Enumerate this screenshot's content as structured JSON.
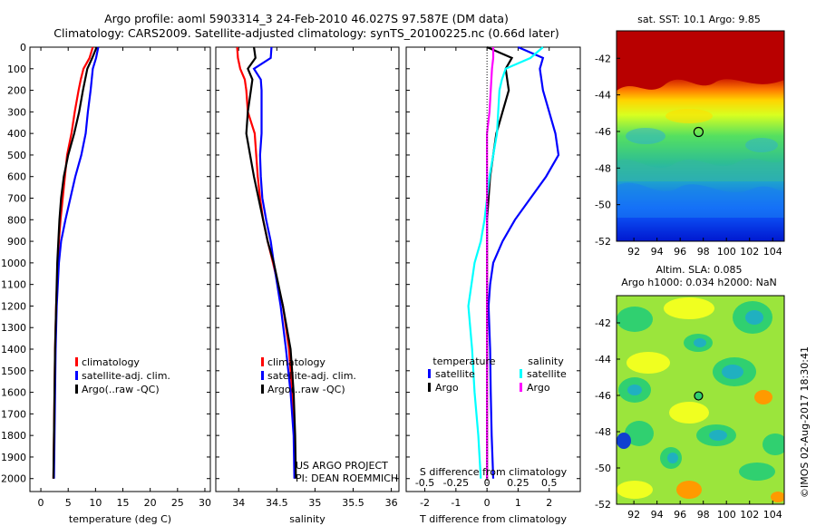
{
  "header": {
    "line1": "Argo profile: aoml 5903314_3 24-Feb-2010 46.027S 97.587E (DM data)",
    "line2": "Climatology: CARS2009. Satellite-adjusted climatology: synTS_20100225.nc (0.66d later)"
  },
  "colors": {
    "climatology": "#ff0000",
    "satellite": "#0000ff",
    "argo": "#000000",
    "satellite_s": "#00ffff",
    "argo_s": "#ff00ff"
  },
  "chart_data": [
    {
      "type": "line",
      "xlabel": "temperature (deg C)",
      "ylabel": "",
      "xlim": [
        -2,
        31
      ],
      "ylim": [
        2060,
        0
      ],
      "x_ticks": [
        "0",
        "5",
        "10",
        "15",
        "20",
        "25",
        "30"
      ],
      "y_ticks": [
        "0",
        "100",
        "200",
        "300",
        "400",
        "500",
        "600",
        "700",
        "800",
        "900",
        "1000",
        "1100",
        "1200",
        "1300",
        "1400",
        "1500",
        "1600",
        "1700",
        "1800",
        "1900",
        "2000"
      ],
      "legend": [
        "climatology",
        "satellite-adj. clim.",
        "Argo(..raw -QC)"
      ],
      "series": [
        {
          "name": "climatology",
          "color": "#ff0000",
          "depth": [
            0,
            50,
            100,
            150,
            200,
            300,
            400,
            500,
            600,
            700,
            800,
            900,
            1000,
            1200,
            1400,
            1600,
            1800,
            2000
          ],
          "values": [
            9.5,
            8.9,
            7.8,
            7.3,
            6.9,
            6.2,
            5.6,
            4.8,
            4.4,
            4.0,
            3.6,
            3.3,
            3.1,
            2.8,
            2.6,
            2.5,
            2.4,
            2.3
          ]
        },
        {
          "name": "satellite-adj. clim.",
          "color": "#0000ff",
          "depth": [
            0,
            50,
            100,
            150,
            200,
            300,
            400,
            500,
            600,
            700,
            800,
            900,
            1000,
            1200,
            1400,
            1600,
            1800,
            2000
          ],
          "values": [
            10.5,
            10.1,
            9.5,
            9.3,
            9.1,
            8.6,
            8.2,
            7.4,
            6.3,
            5.4,
            4.5,
            3.7,
            3.3,
            2.9,
            2.7,
            2.6,
            2.5,
            2.4
          ]
        },
        {
          "name": "Argo(..raw -QC)",
          "color": "#000000",
          "depth": [
            0,
            50,
            100,
            150,
            200,
            300,
            400,
            500,
            600,
            700,
            800,
            900,
            1000,
            1200,
            1400,
            1600,
            1800,
            2000
          ],
          "values": [
            10.2,
            9.4,
            8.5,
            8.1,
            7.7,
            7.0,
            6.1,
            5.0,
            4.2,
            3.7,
            3.4,
            3.2,
            3.0,
            2.8,
            2.6,
            2.5,
            2.4,
            2.3
          ]
        }
      ]
    },
    {
      "type": "line",
      "xlabel": "salinity",
      "xlim": [
        33.7,
        36.1
      ],
      "ylim": [
        2060,
        0
      ],
      "x_ticks": [
        "34",
        "34.5",
        "35",
        "35.5",
        "36"
      ],
      "legend": [
        "climatology",
        "satellite-adj. clim.",
        "Argo(..raw -QC)"
      ],
      "footnote": [
        "US ARGO PROJECT",
        "PI: DEAN ROEMMICH"
      ],
      "series": [
        {
          "name": "climatology",
          "color": "#ff0000",
          "depth": [
            0,
            50,
            100,
            150,
            200,
            300,
            400,
            500,
            600,
            700,
            800,
            900,
            1000,
            1200,
            1400,
            1600,
            1800,
            2000
          ],
          "values": [
            33.98,
            33.99,
            34.02,
            34.08,
            34.1,
            34.12,
            34.21,
            34.23,
            34.25,
            34.28,
            34.32,
            34.38,
            34.45,
            34.58,
            34.66,
            34.7,
            34.73,
            34.74
          ]
        },
        {
          "name": "satellite-adj. clim.",
          "color": "#0000ff",
          "depth": [
            0,
            50,
            100,
            150,
            200,
            300,
            400,
            500,
            600,
            700,
            800,
            900,
            1000,
            1200,
            1400,
            1600,
            1800,
            2000
          ],
          "values": [
            34.43,
            34.42,
            34.2,
            34.29,
            34.3,
            34.3,
            34.3,
            34.28,
            34.29,
            34.31,
            34.36,
            34.42,
            34.46,
            34.55,
            34.62,
            34.68,
            34.72,
            34.73
          ]
        },
        {
          "name": "Argo(..raw -QC)",
          "color": "#000000",
          "depth": [
            0,
            50,
            100,
            150,
            200,
            300,
            400,
            500,
            600,
            700,
            800,
            900,
            1000,
            1200,
            1400,
            1600,
            1800,
            2000
          ],
          "values": [
            34.2,
            34.22,
            34.12,
            34.18,
            34.16,
            34.12,
            34.1,
            34.15,
            34.2,
            34.26,
            34.32,
            34.38,
            34.46,
            34.58,
            34.68,
            34.72,
            34.74,
            34.75
          ]
        }
      ]
    },
    {
      "type": "line",
      "xlabel": "T difference from climatology",
      "xlabel_top": "S difference from climatology",
      "xlim": [
        -2.6,
        3.0
      ],
      "ylim": [
        2060,
        0
      ],
      "x_ticks": [
        "-2",
        "-1",
        "0",
        "1",
        "2"
      ],
      "x_ticks_top": [
        "-0.5",
        "-0.25",
        "0",
        "0.25",
        "0.5"
      ],
      "legend_headings": [
        "temperature",
        "salinity"
      ],
      "legend": [
        "satellite",
        "Argo",
        "satellite",
        "Argo"
      ],
      "series": [
        {
          "name": "satellite",
          "group": "temperature",
          "color": "#0000ff",
          "depth": [
            0,
            50,
            100,
            200,
            300,
            400,
            500,
            600,
            700,
            800,
            900,
            1000,
            1100,
            1200,
            1400,
            1600,
            1800,
            2000
          ],
          "values": [
            1.0,
            1.8,
            1.7,
            1.8,
            2.0,
            2.2,
            2.3,
            1.9,
            1.4,
            0.9,
            0.5,
            0.2,
            0.1,
            0.05,
            0.1,
            0.12,
            0.15,
            0.2
          ]
        },
        {
          "name": "Argo",
          "group": "temperature",
          "color": "#000000",
          "depth": [
            0,
            50,
            100,
            200,
            300,
            400,
            500,
            600,
            700,
            800,
            900,
            1000,
            1200,
            1400,
            1600,
            1800,
            2000
          ],
          "values": [
            0.0,
            0.8,
            0.6,
            0.7,
            0.5,
            0.3,
            0.2,
            0.1,
            0.05,
            0.0,
            0.0,
            0.0,
            0.0,
            0.0,
            0.0,
            0.0,
            0.0
          ]
        },
        {
          "name": "satellite",
          "group": "salinity",
          "color": "#00ffff",
          "depth": [
            0,
            50,
            100,
            150,
            200,
            300,
            400,
            500,
            600,
            700,
            800,
            900,
            1000,
            1200,
            1400,
            1600,
            1800,
            2000
          ],
          "values": [
            0.45,
            0.35,
            0.15,
            0.12,
            0.1,
            0.09,
            0.08,
            0.05,
            0.02,
            0.0,
            -0.02,
            -0.05,
            -0.1,
            -0.15,
            -0.12,
            -0.1,
            -0.07,
            -0.05
          ]
        },
        {
          "name": "Argo",
          "group": "salinity",
          "color": "#ff00ff",
          "depth": [
            0,
            50,
            100,
            200,
            300,
            400,
            500,
            600,
            700,
            800,
            1000,
            1200,
            1400,
            1600,
            1800,
            2000
          ],
          "values": [
            0.05,
            0.05,
            0.04,
            0.03,
            0.02,
            0.0,
            0.0,
            0.0,
            0.0,
            0.0,
            0.0,
            0.0,
            0.0,
            0.0,
            0.0,
            0.0
          ]
        }
      ]
    },
    {
      "type": "heatmap",
      "title": "sat. SST: 10.1 Argo: 9.85",
      "xlim": [
        90.5,
        105
      ],
      "ylim": [
        -52,
        -40.5
      ],
      "x_ticks": [
        "92",
        "94",
        "96",
        "98",
        "100",
        "102",
        "104"
      ],
      "y_ticks": [
        "-42",
        "-44",
        "-46",
        "-48",
        "-50",
        "-52"
      ],
      "marker": {
        "lon": 97.587,
        "lat": -46.027
      }
    },
    {
      "type": "heatmap",
      "title": "Altim. SLA: 0.085",
      "subtitle": "Argo h1000: 0.034 h2000: NaN",
      "xlim": [
        90.5,
        105
      ],
      "ylim": [
        -52,
        -40.5
      ],
      "x_ticks": [
        "92",
        "94",
        "96",
        "98",
        "100",
        "102",
        "104"
      ],
      "y_ticks": [
        "-42",
        "-44",
        "-46",
        "-48",
        "-50",
        "-52"
      ],
      "marker": {
        "lon": 97.587,
        "lat": -46.027
      }
    }
  ],
  "stamp": "©IMOS 02-Aug-2017 18:30:41"
}
